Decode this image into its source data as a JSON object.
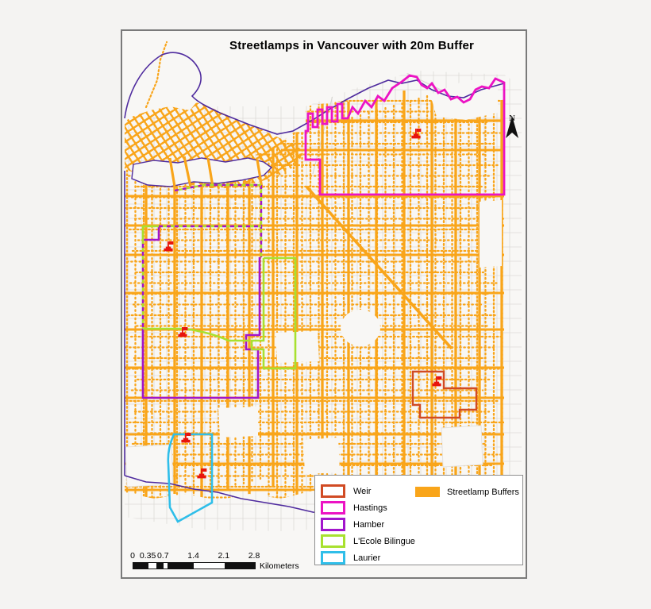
{
  "title": "Streetlamps in Vancouver with 20m Buffer",
  "north_arrow": {
    "label": "N"
  },
  "legend": {
    "boundary_items": [
      {
        "label": "Weir",
        "color": "#D14B24"
      },
      {
        "label": "Hastings",
        "color": "#EC13C4"
      },
      {
        "label": "Hamber",
        "color": "#A215CC"
      },
      {
        "label": "L'Ecole Bilingue",
        "color": "#A8E12F"
      },
      {
        "label": "Laurier",
        "color": "#2FBEE9"
      }
    ],
    "fill_item": {
      "label": "Streetlamp Buffers",
      "color": "#F9A51A"
    }
  },
  "scale_bar": {
    "tick_labels": [
      "0",
      "0.35",
      "0.7",
      "1.4",
      "2.1",
      "2.8"
    ],
    "unit_label": "Kilometers",
    "tick_values": [
      0,
      0.35,
      0.7,
      1.4,
      2.1,
      2.8
    ],
    "max_value": 2.8
  },
  "map": {
    "colors": {
      "streetlamp_buffer": "#F9A51A",
      "city_boundary": "#4F2B9E",
      "school_symbol": "#E8140C",
      "background": "#f8f7f5",
      "minor_street": "#dcdad7"
    }
  }
}
